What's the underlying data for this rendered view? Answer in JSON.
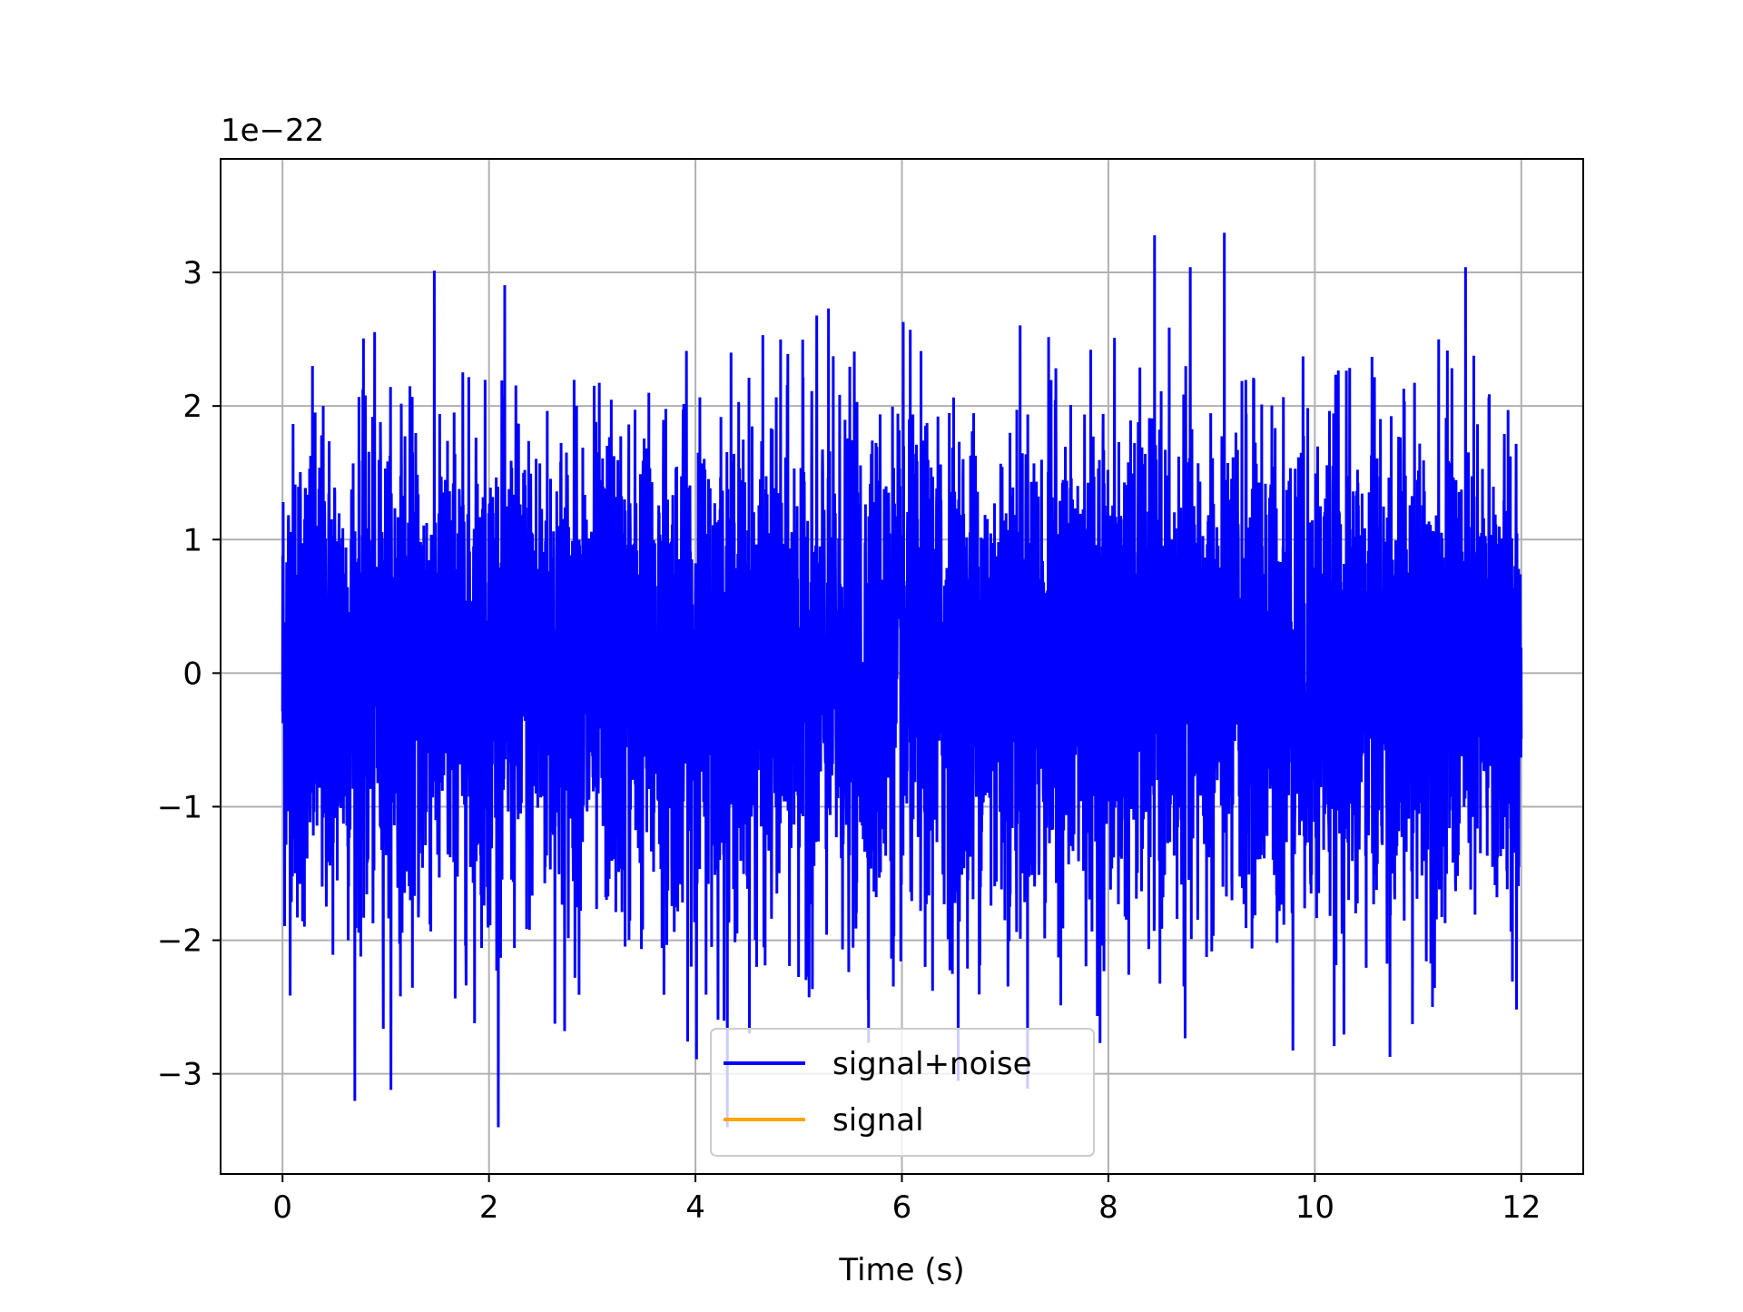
{
  "chart_data": {
    "type": "line",
    "title": "",
    "xlabel": "Time (s)",
    "ylabel": "",
    "y_offset_label": "1e−22",
    "y_scale": 1e-22,
    "xlim": [
      -0.6,
      12.6
    ],
    "ylim": [
      -3.75e-22,
      3.85e-22
    ],
    "x_ticks": [
      0,
      2,
      4,
      6,
      8,
      10,
      12
    ],
    "x_tick_labels": [
      "0",
      "2",
      "4",
      "6",
      "8",
      "10",
      "12"
    ],
    "y_ticks": [
      -3e-22,
      -2e-22,
      -1e-22,
      0,
      1e-22,
      2e-22,
      3e-22
    ],
    "y_tick_labels": [
      "−3",
      "−2",
      "−1",
      "0",
      "1",
      "2",
      "3"
    ],
    "grid": true,
    "legend_position": "bottom-center",
    "series": [
      {
        "name": "signal+noise",
        "color": "#0000ff",
        "x_range": [
          0,
          12
        ],
        "mean": 0,
        "std_estimate": 1e-22,
        "max_value": 3.47e-22,
        "min_value": -3.4e-22,
        "description_values": "dense noise waveform, approx. Gaussian with sigma ~1e-22"
      },
      {
        "name": "signal",
        "color": "#ffa500",
        "x_range": [
          0,
          12
        ],
        "values_note": "hidden beneath noise trace"
      }
    ]
  }
}
